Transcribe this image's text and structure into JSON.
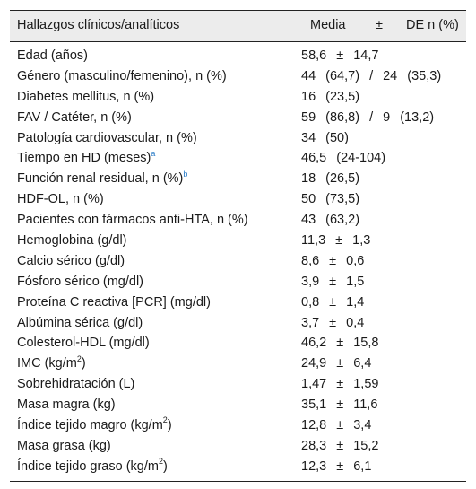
{
  "header": {
    "col1": "Hallazgos clínicos/analíticos",
    "col2": "Media",
    "col3": "±",
    "col4": "DE n (%)"
  },
  "rows": [
    {
      "label": "Edad (años)",
      "value": "58,6 ± 14,7"
    },
    {
      "label": "Género (masculino/femenino), n (%)",
      "value": "44 (64,7) / 24 (35,3)"
    },
    {
      "label": "Diabetes mellitus, n (%)",
      "value": "16 (23,5)"
    },
    {
      "label": "FAV / Catéter, n (%)",
      "value": "59 (86,8) / 9 (13,2)"
    },
    {
      "label": "Patología cardiovascular, n (%)",
      "value": "34 (50)"
    },
    {
      "label": "Tiempo en HD (meses)",
      "sup": "a",
      "value": "46,5 (24-104)"
    },
    {
      "label": "Función renal residual, n (%)",
      "sup": "b",
      "value": "18 (26,5)"
    },
    {
      "label": "HDF-OL, n (%)",
      "value": "50 (73,5)"
    },
    {
      "label": "Pacientes con fármacos anti-HTA, n (%)",
      "value": "43 (63,2)"
    },
    {
      "label": "Hemoglobina (g/dl)",
      "value": "11,3 ± 1,3"
    },
    {
      "label": "Calcio sérico (g/dl)",
      "value": "8,6 ± 0,6"
    },
    {
      "label": "Fósforo sérico (mg/dl)",
      "value": "3,9 ± 1,5"
    },
    {
      "label": "Proteína C reactiva [PCR] (mg/dl)",
      "value": "0,8 ± 1,4"
    },
    {
      "label": "Albúmina sérica (g/dl)",
      "value": "3,7 ± 0,4"
    },
    {
      "label": "Colesterol-HDL (mg/dl)",
      "value": "46,2 ± 15,8"
    },
    {
      "label": "IMC (kg/m",
      "unit_sup": "2",
      "label_end": ")",
      "value": "24,9 ± 6,4"
    },
    {
      "label": "Sobrehidratación (L)",
      "value": "1,47 ± 1,59"
    },
    {
      "label": "Masa magra (kg)",
      "value": "35,1 ± 11,6"
    },
    {
      "label": "Índice tejido magro (kg/m",
      "unit_sup": "2",
      "label_end": ")",
      "value": "12,8 ± 3,4"
    },
    {
      "label": "Masa grasa (kg)",
      "value": "28,3 ± 15,2"
    },
    {
      "label": "Índice tejido graso (kg/m",
      "unit_sup": "2",
      "label_end": ")",
      "value": "12,3 ± 6,1"
    }
  ],
  "colors": {
    "header_bg": "#ececec",
    "footnote_marker": "#2a7cc7"
  }
}
